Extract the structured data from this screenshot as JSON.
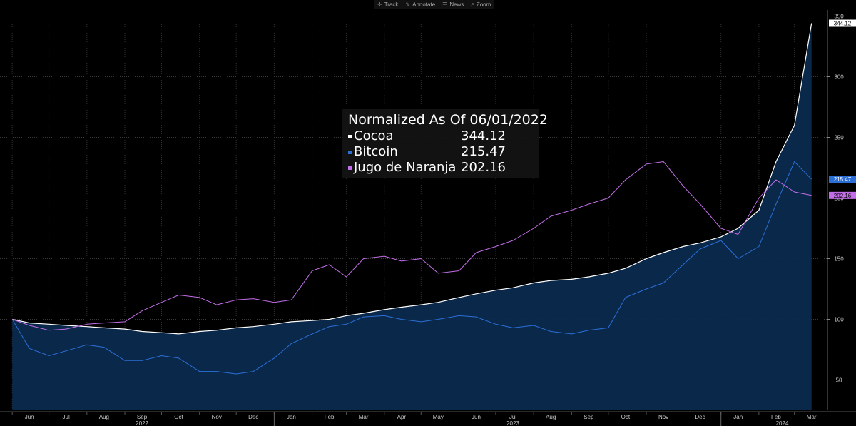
{
  "toolbar": {
    "items": [
      {
        "label": "Track",
        "icon": "crosshair-icon",
        "glyph": "✛"
      },
      {
        "label": "Annotate",
        "icon": "pencil-icon",
        "glyph": "✎"
      },
      {
        "label": "News",
        "icon": "news-icon",
        "glyph": "☰"
      },
      {
        "label": "Zoom",
        "icon": "magnifier-icon",
        "glyph": "⌕"
      }
    ]
  },
  "legend": {
    "title": "Normalized As Of 06/01/2022",
    "entries": [
      {
        "name": "Cocoa",
        "value": "344.12",
        "color": "#ffffff"
      },
      {
        "name": "Bitcoin",
        "value": "215.47",
        "color": "#2b6fd6"
      },
      {
        "name": "Jugo de Naranja",
        "value": "202.16",
        "color": "#c36ee8"
      }
    ]
  },
  "badges": [
    {
      "label": "344.12",
      "value": 344.12,
      "bg": "#ffffff",
      "fg": "#000000"
    },
    {
      "label": "215.47",
      "value": 215.47,
      "bg": "#2b6fd6",
      "fg": "#ffffff"
    },
    {
      "label": "202.16",
      "value": 202.16,
      "bg": "#c36ee8",
      "fg": "#000000"
    }
  ],
  "chart_data": {
    "type": "line",
    "title": "Normalized As Of 06/01/2022",
    "ylim": [
      25,
      355
    ],
    "y_ticks": [
      50,
      100,
      150,
      200,
      250,
      300,
      350
    ],
    "x_tick_labels": [
      "Jun",
      "Jul",
      "Aug",
      "Sep",
      "Oct",
      "Nov",
      "Dec",
      "Jan",
      "Feb",
      "Mar",
      "Apr",
      "May",
      "Jun",
      "Jul",
      "Aug",
      "Sep",
      "Oct",
      "Nov",
      "Dec",
      "Jan",
      "Feb",
      "Mar"
    ],
    "x_year_labels": [
      "2022",
      "2023",
      "2024"
    ],
    "grid": true,
    "x": [
      "2022-06-01",
      "2022-06-15",
      "2022-07-01",
      "2022-07-15",
      "2022-08-01",
      "2022-08-15",
      "2022-09-01",
      "2022-09-15",
      "2022-10-01",
      "2022-10-15",
      "2022-11-01",
      "2022-11-15",
      "2022-12-01",
      "2022-12-15",
      "2023-01-01",
      "2023-01-15",
      "2023-02-01",
      "2023-02-15",
      "2023-03-01",
      "2023-03-15",
      "2023-04-01",
      "2023-04-15",
      "2023-05-01",
      "2023-05-15",
      "2023-06-01",
      "2023-06-15",
      "2023-07-01",
      "2023-07-15",
      "2023-08-01",
      "2023-08-15",
      "2023-09-01",
      "2023-09-15",
      "2023-10-01",
      "2023-10-15",
      "2023-11-01",
      "2023-11-15",
      "2023-12-01",
      "2023-12-15",
      "2024-01-01",
      "2024-01-15",
      "2024-02-01",
      "2024-02-15",
      "2024-03-01",
      "2024-03-15"
    ],
    "series": [
      {
        "name": "Cocoa",
        "color": "#ffffff",
        "values": [
          100,
          97,
          96,
          95,
          94,
          93,
          92,
          90,
          89,
          88,
          90,
          91,
          93,
          94,
          96,
          98,
          99,
          100,
          103,
          105,
          108,
          110,
          112,
          114,
          118,
          121,
          124,
          126,
          130,
          132,
          133,
          135,
          138,
          142,
          150,
          155,
          160,
          163,
          168,
          175,
          190,
          230,
          260,
          344.12
        ]
      },
      {
        "name": "Bitcoin",
        "color": "#2b6fd6",
        "values": [
          100,
          76,
          70,
          74,
          79,
          77,
          66,
          66,
          70,
          68,
          57,
          57,
          55,
          57,
          68,
          80,
          88,
          94,
          96,
          102,
          103,
          100,
          98,
          100,
          103,
          102,
          96,
          93,
          95,
          90,
          88,
          91,
          93,
          118,
          125,
          130,
          145,
          158,
          165,
          150,
          160,
          195,
          230,
          215.47
        ]
      },
      {
        "name": "Jugo de Naranja",
        "color": "#c36ee8",
        "values": [
          100,
          95,
          91,
          92,
          96,
          97,
          98,
          107,
          114,
          120,
          118,
          112,
          116,
          117,
          114,
          116,
          140,
          145,
          135,
          150,
          152,
          148,
          150,
          138,
          140,
          155,
          160,
          165,
          175,
          185,
          190,
          195,
          200,
          215,
          228,
          230,
          210,
          195,
          175,
          170,
          200,
          215,
          205,
          202.16
        ]
      }
    ]
  }
}
